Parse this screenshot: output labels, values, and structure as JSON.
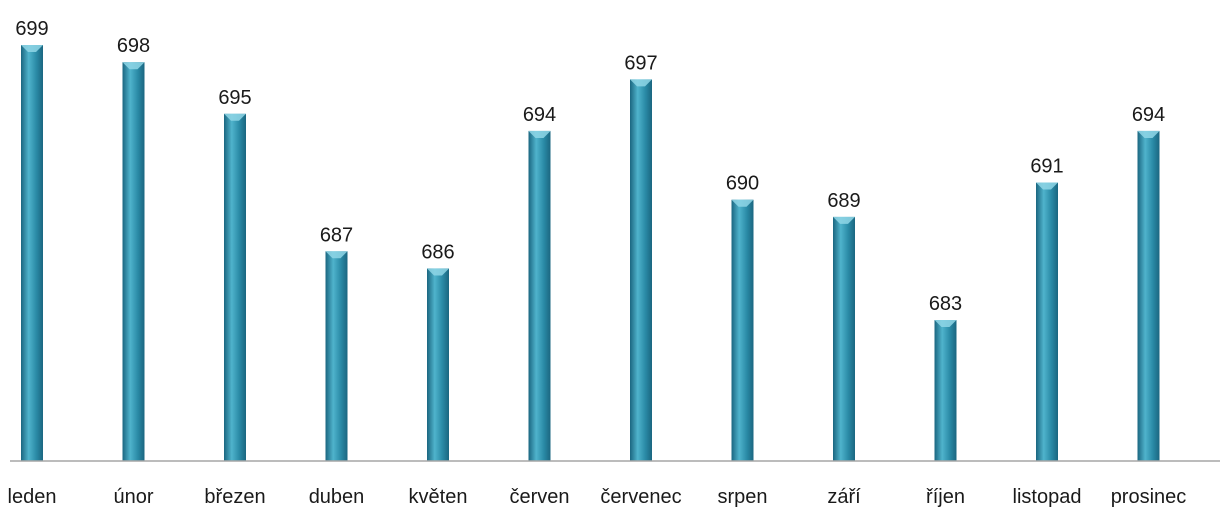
{
  "chart_data": {
    "type": "bar",
    "categories": [
      "leden",
      "únor",
      "březen",
      "duben",
      "květen",
      "červen",
      "červenec",
      "srpen",
      "září",
      "říjen",
      "listopad",
      "prosinec"
    ],
    "values": [
      699,
      698,
      695,
      687,
      686,
      694,
      697,
      690,
      689,
      683,
      691,
      694
    ],
    "data_labels": [
      "699",
      "698",
      "695",
      "687",
      "686",
      "694",
      "697",
      "690",
      "689",
      "683",
      "691",
      "694"
    ],
    "ylim": [
      675,
      700
    ],
    "grid": false,
    "legend": "none",
    "colors": {
      "bar_light": "#4fb3cc",
      "bar_mid": "#2a8aa6",
      "bar_dark": "#1b6680",
      "axis": "#a6a6a6"
    }
  }
}
